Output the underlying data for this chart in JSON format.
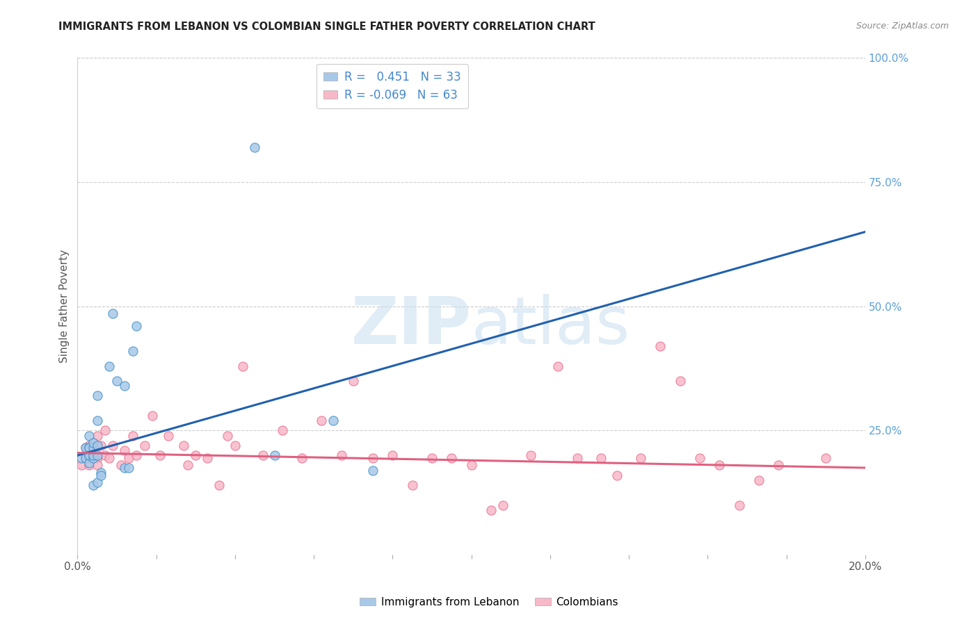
{
  "title": "IMMIGRANTS FROM LEBANON VS COLOMBIAN SINGLE FATHER POVERTY CORRELATION CHART",
  "source": "Source: ZipAtlas.com",
  "ylabel": "Single Father Poverty",
  "legend1_R": "0.451",
  "legend1_N": "33",
  "legend2_R": "-0.069",
  "legend2_N": "63",
  "blue_color": "#a8c8e8",
  "pink_color": "#f8b8c8",
  "blue_edge_color": "#4090c8",
  "pink_edge_color": "#e87090",
  "blue_line_color": "#2060b0",
  "pink_line_color": "#e06080",
  "watermark_zip": "ZIP",
  "watermark_atlas": "atlas",
  "blue_points_x": [
    0.001,
    0.002,
    0.002,
    0.003,
    0.003,
    0.003,
    0.003,
    0.003,
    0.003,
    0.004,
    0.004,
    0.004,
    0.004,
    0.004,
    0.005,
    0.005,
    0.005,
    0.005,
    0.005,
    0.006,
    0.006,
    0.008,
    0.009,
    0.01,
    0.012,
    0.012,
    0.013,
    0.014,
    0.015,
    0.045,
    0.05,
    0.065,
    0.075
  ],
  "blue_points_y": [
    0.195,
    0.195,
    0.215,
    0.185,
    0.2,
    0.215,
    0.24,
    0.2,
    0.215,
    0.195,
    0.215,
    0.225,
    0.2,
    0.14,
    0.145,
    0.2,
    0.22,
    0.27,
    0.32,
    0.165,
    0.16,
    0.38,
    0.485,
    0.35,
    0.175,
    0.34,
    0.175,
    0.41,
    0.46,
    0.82,
    0.2,
    0.27,
    0.17
  ],
  "pink_points_x": [
    0.001,
    0.002,
    0.002,
    0.003,
    0.003,
    0.003,
    0.004,
    0.004,
    0.004,
    0.004,
    0.005,
    0.005,
    0.005,
    0.006,
    0.007,
    0.007,
    0.008,
    0.009,
    0.011,
    0.012,
    0.013,
    0.014,
    0.015,
    0.017,
    0.019,
    0.021,
    0.023,
    0.027,
    0.028,
    0.03,
    0.033,
    0.036,
    0.038,
    0.04,
    0.042,
    0.047,
    0.052,
    0.057,
    0.062,
    0.067,
    0.07,
    0.075,
    0.08,
    0.085,
    0.09,
    0.095,
    0.1,
    0.105,
    0.108,
    0.115,
    0.122,
    0.127,
    0.133,
    0.137,
    0.143,
    0.148,
    0.153,
    0.158,
    0.163,
    0.168,
    0.173,
    0.178,
    0.19
  ],
  "pink_points_y": [
    0.18,
    0.2,
    0.215,
    0.195,
    0.22,
    0.18,
    0.2,
    0.21,
    0.195,
    0.22,
    0.24,
    0.195,
    0.18,
    0.22,
    0.25,
    0.2,
    0.195,
    0.22,
    0.18,
    0.21,
    0.195,
    0.24,
    0.2,
    0.22,
    0.28,
    0.2,
    0.24,
    0.22,
    0.18,
    0.2,
    0.195,
    0.14,
    0.24,
    0.22,
    0.38,
    0.2,
    0.25,
    0.195,
    0.27,
    0.2,
    0.35,
    0.195,
    0.2,
    0.14,
    0.195,
    0.195,
    0.18,
    0.09,
    0.1,
    0.2,
    0.38,
    0.195,
    0.195,
    0.16,
    0.195,
    0.42,
    0.35,
    0.195,
    0.18,
    0.1,
    0.15,
    0.18,
    0.195
  ],
  "blue_trend_x": [
    0.0,
    0.2
  ],
  "blue_trend_y": [
    0.2,
    0.65
  ],
  "pink_trend_x": [
    0.0,
    0.2
  ],
  "pink_trend_y": [
    0.205,
    0.175
  ],
  "xlim": [
    0.0,
    0.2
  ],
  "ylim": [
    0.0,
    1.0
  ],
  "ytick_vals": [
    0.25,
    0.5,
    0.75,
    1.0
  ],
  "ytick_labels": [
    "25.0%",
    "50.0%",
    "75.0%",
    "100.0%"
  ],
  "background_color": "#ffffff",
  "grid_color": "#cccccc",
  "right_tick_color": "#5aa0d8",
  "legend_text_color": "#4488cc",
  "legend_R_color": "#222222",
  "title_color": "#222222",
  "source_color": "#888888"
}
